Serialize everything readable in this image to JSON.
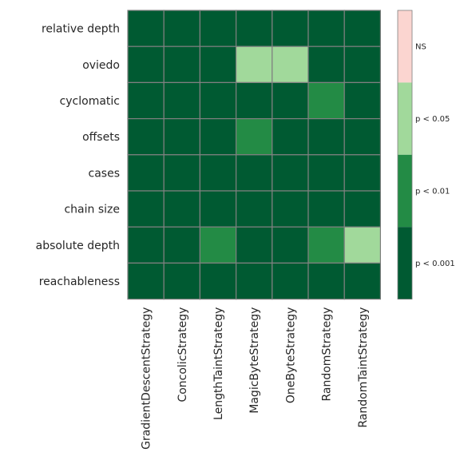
{
  "chart_data": {
    "type": "heatmap",
    "rows": [
      "relative depth",
      "oviedo",
      "cyclomatic",
      "offsets",
      "cases",
      "chain size",
      "absolute depth",
      "reachableness"
    ],
    "columns": [
      "GradientDescentStrategy",
      "ConcolicStrategy",
      "LengthTaintStrategy",
      "MagicByteStrategy",
      "OneByteStrategy",
      "RandomStrategy",
      "RandomTaintStrategy"
    ],
    "levels": [
      "p < 0.001",
      "p < 0.01",
      "p < 0.05",
      "NS"
    ],
    "level_colors": [
      "#005a32",
      "#238b45",
      "#a1d99b",
      "#fbd5d0"
    ],
    "values": [
      [
        0,
        0,
        0,
        0,
        0,
        0,
        0
      ],
      [
        0,
        0,
        0,
        2,
        2,
        0,
        0
      ],
      [
        0,
        0,
        0,
        0,
        0,
        1,
        0
      ],
      [
        0,
        0,
        0,
        1,
        0,
        0,
        0
      ],
      [
        0,
        0,
        0,
        0,
        0,
        0,
        0
      ],
      [
        0,
        0,
        0,
        0,
        0,
        0,
        0
      ],
      [
        0,
        0,
        1,
        0,
        0,
        1,
        2
      ],
      [
        0,
        0,
        0,
        0,
        0,
        0,
        0
      ]
    ],
    "legend": {
      "placement": "right",
      "labels": [
        "NS",
        "p < 0.05",
        "p < 0.01",
        "p < 0.001"
      ]
    },
    "grid_color": "#808080"
  }
}
